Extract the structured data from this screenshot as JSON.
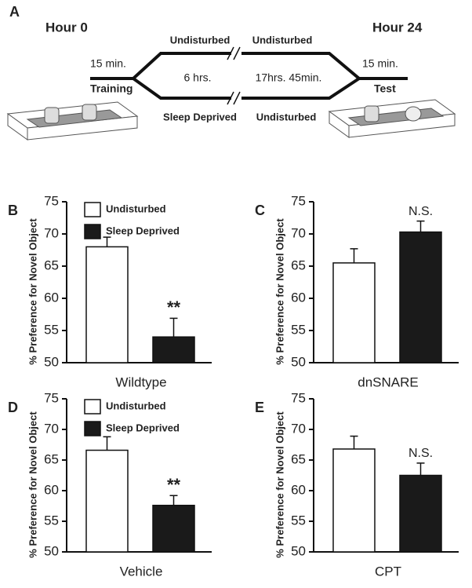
{
  "diagram": {
    "panel": "A",
    "start": "Hour 0",
    "end": "Hour 24",
    "train_time": "15 min.",
    "train_label": "Training",
    "test_time": "15 min.",
    "test_label": "Test",
    "top_left": "Undisturbed",
    "top_right": "Undisturbed",
    "bottom_left": "Sleep Deprived",
    "bottom_right": "Undisturbed",
    "mid_left": "6 hrs.",
    "mid_right": "17hrs. 45min."
  },
  "chart_data": [
    {
      "type": "bar",
      "panel": "B",
      "categories": [
        "Wildtype"
      ],
      "ylabel": "% Preference for Novel Object",
      "ylim": [
        50,
        75
      ],
      "yticks": [
        50,
        55,
        60,
        65,
        70,
        75
      ],
      "annotation": "**",
      "series": [
        {
          "name": "Undisturbed",
          "color": "#ffffff",
          "values": [
            68
          ],
          "errors": [
            1.5
          ]
        },
        {
          "name": "Sleep Deprived",
          "color": "#1a1a1a",
          "values": [
            54
          ],
          "errors": [
            2.9
          ]
        }
      ]
    },
    {
      "type": "bar",
      "panel": "C",
      "categories": [
        "dnSNARE"
      ],
      "ylabel": "% Preference for Novel Object",
      "ylim": [
        50,
        75
      ],
      "yticks": [
        50,
        55,
        60,
        65,
        70,
        75
      ],
      "annotation": "N.S.",
      "series": [
        {
          "color": "#ffffff",
          "values": [
            65.5
          ],
          "errors": [
            2.2
          ]
        },
        {
          "color": "#1a1a1a",
          "values": [
            70.3
          ],
          "errors": [
            1.7
          ]
        }
      ]
    },
    {
      "type": "bar",
      "panel": "D",
      "categories": [
        "Vehicle"
      ],
      "ylabel": "% Preference for Novel Object",
      "ylim": [
        50,
        75
      ],
      "yticks": [
        50,
        55,
        60,
        65,
        70,
        75
      ],
      "annotation": "**",
      "series": [
        {
          "name": "Undisturbed",
          "color": "#ffffff",
          "values": [
            66.6
          ],
          "errors": [
            2.2
          ]
        },
        {
          "name": "Sleep Deprived",
          "color": "#1a1a1a",
          "values": [
            57.6
          ],
          "errors": [
            1.6
          ]
        }
      ]
    },
    {
      "type": "bar",
      "panel": "E",
      "categories": [
        "CPT"
      ],
      "ylabel": "% Preference for Novel Object",
      "ylim": [
        50,
        75
      ],
      "yticks": [
        50,
        55,
        60,
        65,
        70,
        75
      ],
      "annotation": "N.S.",
      "series": [
        {
          "color": "#ffffff",
          "values": [
            66.8
          ],
          "errors": [
            2.1
          ]
        },
        {
          "color": "#1a1a1a",
          "values": [
            62.5
          ],
          "errors": [
            2
          ]
        }
      ]
    }
  ]
}
